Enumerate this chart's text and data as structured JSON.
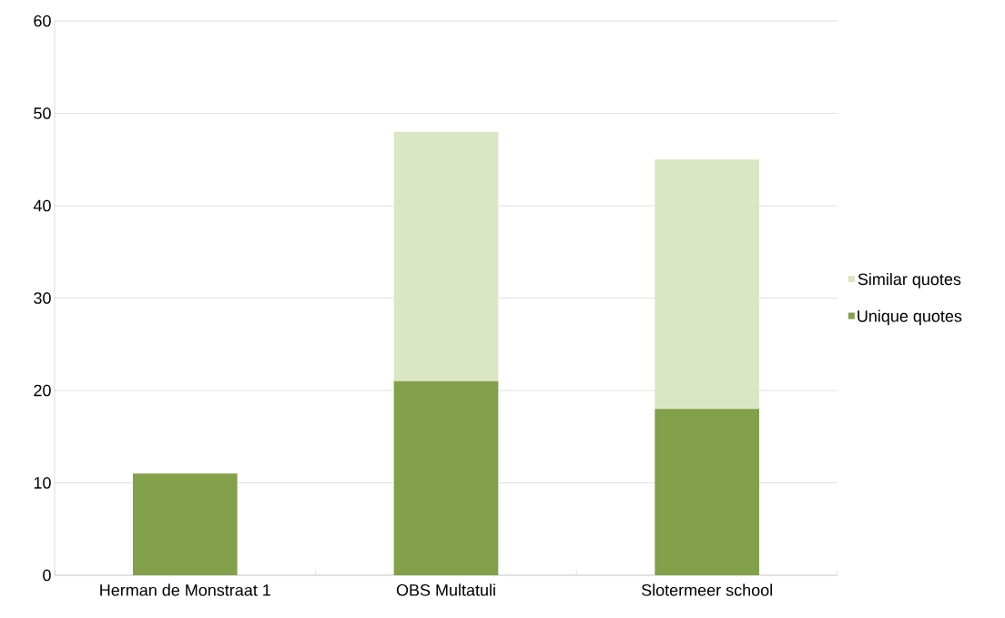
{
  "chart_data": {
    "type": "bar",
    "stacked": true,
    "categories": [
      "Herman de Monstraat 1",
      "OBS Multatuli",
      "Slotermeer school"
    ],
    "series": [
      {
        "name": "Unique quotes",
        "color": "#83a04a",
        "values": [
          11,
          21,
          18
        ]
      },
      {
        "name": "Similar quotes",
        "color": "#dbe7c4",
        "values": [
          0,
          27,
          27
        ]
      }
    ],
    "ylim": [
      0,
      60
    ],
    "yticks": [
      0,
      10,
      20,
      30,
      40,
      50,
      60
    ],
    "grid": "y",
    "legend": "right"
  }
}
